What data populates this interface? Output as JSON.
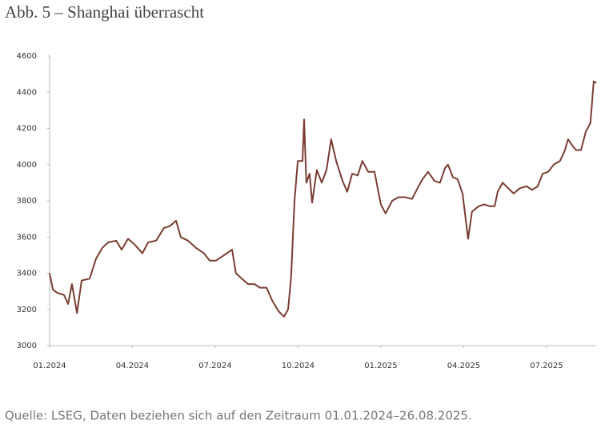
{
  "chart_data": {
    "type": "line",
    "title": "Abb. 5 – Shanghai überrascht",
    "source": "Quelle: LSEG, Daten beziehen sich auf den Zeitraum 01.01.2024–26.08.2025.",
    "series": [
      {
        "name": "Shanghai",
        "color": "#7a3d33",
        "x": [
          0,
          0.12,
          0.29,
          0.52,
          0.67,
          0.81,
          0.99,
          1.16,
          1.45,
          1.68,
          1.91,
          2.12,
          2.41,
          2.61,
          2.84,
          3.07,
          3.36,
          3.57,
          3.86,
          4.14,
          4.35,
          4.58,
          4.75,
          5.01,
          5.3,
          5.59,
          5.8,
          6.03,
          6.32,
          6.61,
          6.75,
          6.96,
          7.19,
          7.42,
          7.62,
          7.86,
          8.06,
          8.29,
          8.49,
          8.64,
          8.75,
          8.87,
          8.99,
          9.16,
          9.22,
          9.3,
          9.42,
          9.51,
          9.68,
          9.86,
          10.03,
          10.2,
          10.38,
          10.61,
          10.78,
          10.96,
          11.16,
          11.33,
          11.54,
          11.77,
          12.0,
          12.17,
          12.41,
          12.64,
          12.87,
          13.13,
          13.33,
          13.51,
          13.71,
          13.94,
          14.14,
          14.32,
          14.43,
          14.61,
          14.78,
          14.96,
          15.16,
          15.3,
          15.54,
          15.74,
          15.94,
          16.12,
          16.23,
          16.41,
          16.61,
          16.81,
          17.04,
          17.28,
          17.48,
          17.68,
          17.86,
          18.06,
          18.26,
          18.49,
          18.67,
          18.78,
          18.96,
          19.07,
          19.25,
          19.42,
          19.59,
          19.71,
          19.8
        ],
        "values": [
          3400,
          3310,
          3290,
          3280,
          3230,
          3340,
          3180,
          3360,
          3370,
          3480,
          3540,
          3570,
          3580,
          3530,
          3590,
          3560,
          3510,
          3570,
          3580,
          3650,
          3660,
          3690,
          3600,
          3580,
          3540,
          3510,
          3470,
          3470,
          3500,
          3530,
          3400,
          3370,
          3340,
          3340,
          3320,
          3320,
          3250,
          3190,
          3160,
          3200,
          3380,
          3800,
          4020,
          4020,
          4250,
          3900,
          3950,
          3790,
          3970,
          3900,
          3970,
          4140,
          4020,
          3910,
          3850,
          3950,
          3940,
          4020,
          3960,
          3960,
          3780,
          3730,
          3800,
          3820,
          3820,
          3810,
          3870,
          3920,
          3960,
          3910,
          3900,
          3980,
          4000,
          3930,
          3920,
          3840,
          3590,
          3740,
          3770,
          3780,
          3770,
          3770,
          3850,
          3900,
          3870,
          3840,
          3870,
          3880,
          3860,
          3880,
          3950,
          3960,
          4000,
          4020,
          4080,
          4140,
          4100,
          4080,
          4080,
          4180,
          4230,
          4460,
          4450
        ]
      }
    ],
    "xlim": [
      0,
      19.8
    ],
    "xticks": [
      {
        "value": 0,
        "label": "01.2024"
      },
      {
        "value": 3,
        "label": "04.2024"
      },
      {
        "value": 6,
        "label": "07.2024"
      },
      {
        "value": 9,
        "label": "10.2024"
      },
      {
        "value": 12,
        "label": "01.2025"
      },
      {
        "value": 15,
        "label": "04.2025"
      },
      {
        "value": 18,
        "label": "07.2025"
      }
    ],
    "ylim": [
      3000,
      4600
    ],
    "yticks": [
      3000,
      3200,
      3400,
      3600,
      3800,
      4000,
      4200,
      4400,
      4600
    ],
    "grid": false
  }
}
